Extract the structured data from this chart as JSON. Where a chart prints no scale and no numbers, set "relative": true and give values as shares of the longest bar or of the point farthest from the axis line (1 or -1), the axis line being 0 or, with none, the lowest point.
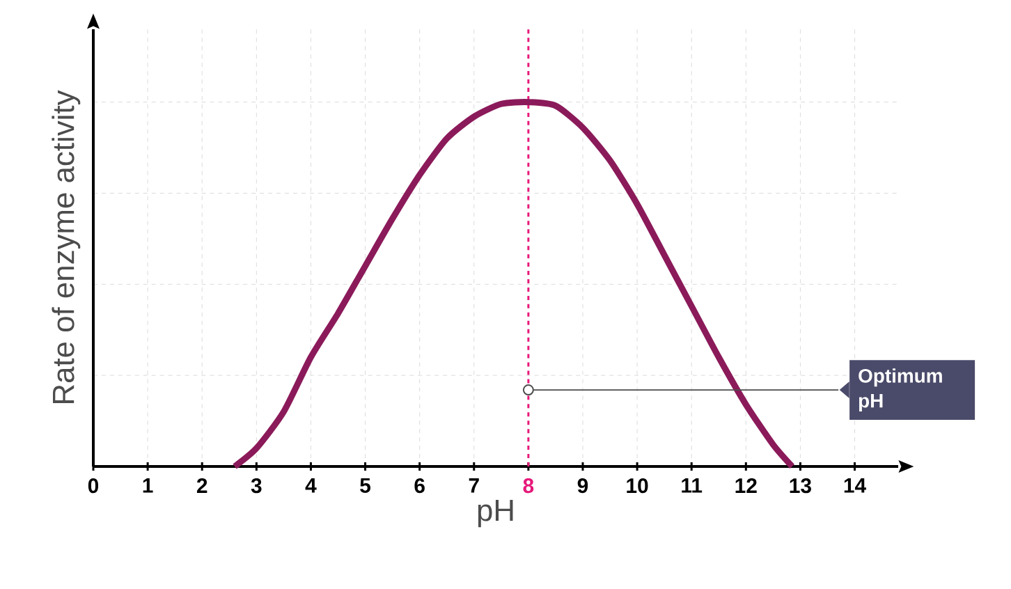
{
  "chart_data": {
    "type": "line",
    "xlabel": "pH",
    "ylabel": "Rate of enzyme activity",
    "relative": true,
    "xlim": [
      0,
      14.8
    ],
    "xticks": [
      0,
      1,
      2,
      3,
      4,
      5,
      6,
      7,
      8,
      9,
      10,
      11,
      12,
      13,
      14
    ],
    "series": [
      {
        "color": "#8b1a5a",
        "x": [
          2.6,
          3,
          3.5,
          4,
          4.5,
          5,
          5.5,
          6,
          6.5,
          7,
          7.5,
          8,
          8.5,
          9,
          9.5,
          10,
          10.5,
          11,
          11.5,
          12,
          12.5,
          12.85
        ],
        "values": [
          0,
          0.05,
          0.15,
          0.3,
          0.42,
          0.55,
          0.68,
          0.8,
          0.9,
          0.96,
          0.995,
          1,
          0.99,
          0.93,
          0.84,
          0.72,
          0.58,
          0.44,
          0.3,
          0.17,
          0.06,
          0
        ]
      }
    ],
    "ref_lines": [
      {
        "axis": "x",
        "value": 8,
        "color": "#e6197a",
        "line_style": "dashed"
      }
    ],
    "annotations": [
      {
        "text": "Optimum pH",
        "x": 8,
        "y": 0.21
      }
    ],
    "grid": true,
    "marker": "none",
    "line_style": "solid"
  }
}
